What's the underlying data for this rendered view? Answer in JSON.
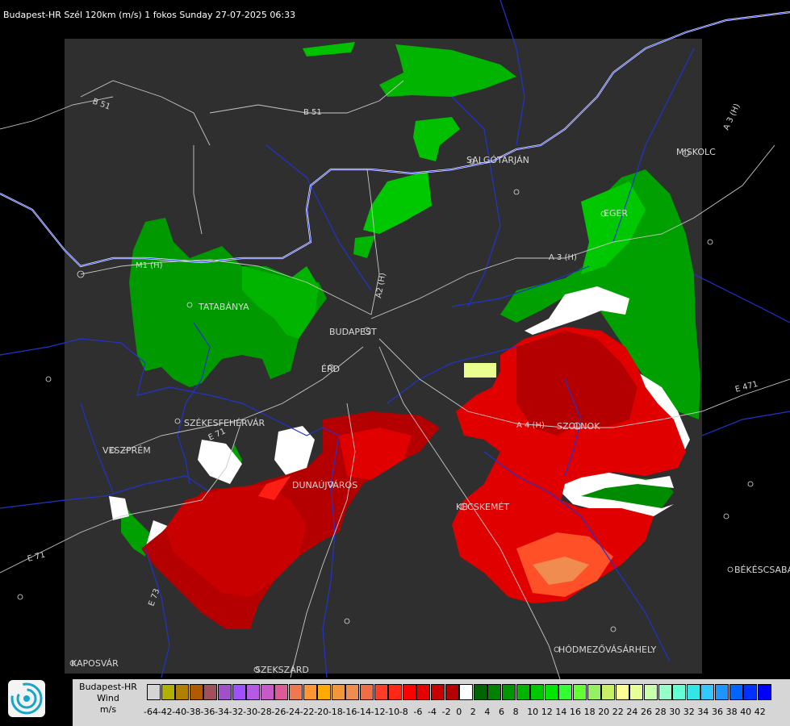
{
  "header": {
    "title": "Budapest-HR Szél 120km (m/s) 1 fokos Sunday 27-07-2025 06:33"
  },
  "cities": [
    {
      "name": "TATABÁNYA"
    },
    {
      "name": "BUDAPEST"
    },
    {
      "name": "ÉRD"
    },
    {
      "name": "SZÉKESFEHÉRVÁR"
    },
    {
      "name": "VESZPRÉM"
    },
    {
      "name": "DUNAÚJVÁROS"
    },
    {
      "name": "KECSKEMÉT"
    },
    {
      "name": "SZOLNOK"
    },
    {
      "name": "EGER"
    },
    {
      "name": "SALGÓTARJÁN"
    },
    {
      "name": "MISKOLC"
    },
    {
      "name": "HÓDMEZŐVÁSÁRHELY"
    },
    {
      "name": "BÉKÉSCSABA"
    },
    {
      "name": "KAPOSVÁR"
    },
    {
      "name": "SZEKSZÁRD"
    }
  ],
  "roads": [
    "B 51",
    "B 51",
    "M1 (H)",
    "A2 (H)",
    "A 3 (H)",
    "A 3 (H)",
    "A 4 (H)",
    "E 71",
    "E 71",
    "E 471",
    "E 73"
  ],
  "legend": {
    "title_lines": [
      "Budapest-HR",
      "Wind",
      "m/s"
    ],
    "swatches": [
      {
        "color": "#d4d4d4"
      },
      {
        "color": "#b0b000"
      },
      {
        "color": "#b08000"
      },
      {
        "color": "#b05a00"
      },
      {
        "color": "#a0505a"
      },
      {
        "color": "#a050c8"
      },
      {
        "color": "#a050ff"
      },
      {
        "color": "#b45ae6"
      },
      {
        "color": "#c85ac8"
      },
      {
        "color": "#dc5a96"
      },
      {
        "color": "#f07850"
      },
      {
        "color": "#ff9632"
      },
      {
        "color": "#ffaa00"
      },
      {
        "color": "#f0963c"
      },
      {
        "color": "#f08c50"
      },
      {
        "color": "#f06e46"
      },
      {
        "color": "#ff3c28"
      },
      {
        "color": "#ff2814"
      },
      {
        "color": "#ff0000"
      },
      {
        "color": "#e60000"
      },
      {
        "color": "#c80000"
      },
      {
        "color": "#b40000"
      },
      {
        "color": "#ffffff"
      },
      {
        "color": "#006400"
      },
      {
        "color": "#008200"
      },
      {
        "color": "#009600"
      },
      {
        "color": "#00b400"
      },
      {
        "color": "#00c800"
      },
      {
        "color": "#00e600"
      },
      {
        "color": "#32ff32"
      },
      {
        "color": "#64ff32"
      },
      {
        "color": "#96f064"
      },
      {
        "color": "#c8f064"
      },
      {
        "color": "#ffff96"
      },
      {
        "color": "#e6ff96"
      },
      {
        "color": "#c8ffaa"
      },
      {
        "color": "#96ffc8"
      },
      {
        "color": "#64ffd2"
      },
      {
        "color": "#32e6e6"
      },
      {
        "color": "#32c8ff"
      },
      {
        "color": "#1e96ff"
      },
      {
        "color": "#0064ff"
      },
      {
        "color": "#0032ff"
      },
      {
        "color": "#0000ff"
      }
    ],
    "labels": [
      "-64",
      "-42",
      "-40",
      "-38",
      "-36",
      "-34",
      "-32",
      "-30",
      "-28",
      "-26",
      "-24",
      "-22",
      "-20",
      "-18",
      "-16",
      "-14",
      "-12",
      "-10",
      "-8",
      "-6",
      "-4",
      "-2",
      "0",
      "2",
      "4",
      "6",
      "8",
      "10",
      "12",
      "14",
      "16",
      "18",
      "20",
      "22",
      "24",
      "26",
      "28",
      "30",
      "32",
      "34",
      "36",
      "38",
      "40",
      "42"
    ]
  }
}
